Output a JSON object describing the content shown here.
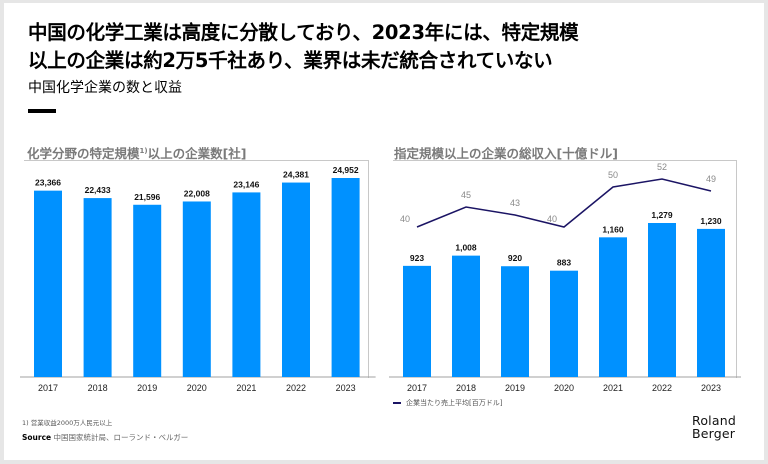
{
  "header": {
    "title_line1": "中国の化学工業は高度に分散しており、2023年には、特定規模",
    "title_line2": "以上の企業は約2万5千社あり、業界は未だ統合されていない",
    "subtitle": "中国化学企業の数と収益"
  },
  "chart_data": [
    {
      "type": "bar",
      "title": "化学分野の特定規模",
      "title_sup": "1)",
      "title_suffix": "以上の企業数[社]",
      "categories": [
        "2017",
        "2018",
        "2019",
        "2020",
        "2021",
        "2022",
        "2023"
      ],
      "values": [
        23366,
        22433,
        21596,
        22008,
        23146,
        24381,
        24952
      ],
      "value_labels": [
        "23,366",
        "22,433",
        "21,596",
        "22,008",
        "23,146",
        "24,381",
        "24,952"
      ],
      "xlabel": "",
      "ylabel": "",
      "ylim": [
        0,
        24952
      ],
      "grid": false,
      "bar_color": "#0091ff"
    },
    {
      "type": "bar",
      "title": "指定規模以上の企業の総収入[十億ドル]",
      "categories": [
        "2017",
        "2018",
        "2019",
        "2020",
        "2021",
        "2022",
        "2023"
      ],
      "values": [
        923,
        1008,
        920,
        883,
        1160,
        1279,
        1230
      ],
      "value_labels": [
        "923",
        "1,008",
        "920",
        "883",
        "1,160",
        "1,279",
        "1,230"
      ],
      "bar_color": "#0091ff",
      "line_series": {
        "name": "企業当たり売上平均[百万ドル]",
        "values": [
          40,
          45,
          43,
          40,
          50,
          52,
          49
        ],
        "value_labels": [
          "40",
          "45",
          "43",
          "40",
          "50",
          "52",
          "49"
        ],
        "color": "#1b1464"
      },
      "xlabel": "",
      "ylabel": "",
      "ylim": [
        0,
        1279
      ],
      "grid": false,
      "legend_position": "bottom-left"
    }
  ],
  "footer": {
    "footnote": "1) 営業収益2000万人民元以上",
    "source_label": "Source",
    "source_text": "中国国家統計局、ローランド・ベルガー",
    "logo_line1": "Roland",
    "logo_line2": "Berger"
  }
}
